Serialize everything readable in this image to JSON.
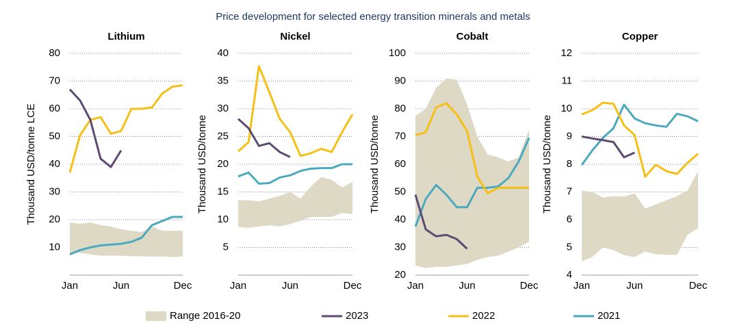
{
  "title": "Price development for selected energy transition minerals and metals",
  "legend": [
    {
      "name": "Range 2016-20",
      "color": "#ddd9c4"
    },
    {
      "name": "2023",
      "color": "#5c4a73"
    },
    {
      "name": "2022",
      "color": "#f5bf16"
    },
    {
      "name": "2021",
      "color": "#4aa8bf"
    }
  ],
  "chart_data": [
    {
      "type": "line",
      "title": "Lithium",
      "y_label": "Thousand USD/tonne LCE",
      "categories": [
        "Jan",
        null,
        null,
        null,
        null,
        "Jun",
        null,
        null,
        null,
        null,
        null,
        "Dec"
      ],
      "ylim": [
        0,
        80
      ],
      "yticks": [
        10,
        20,
        30,
        40,
        50,
        60,
        70,
        80
      ],
      "grid": true,
      "range": {
        "low": [
          8,
          8,
          7.5,
          7,
          7,
          7,
          6.8,
          6.8,
          6.7,
          6.7,
          6.5,
          6.7
        ],
        "high": [
          19,
          18.5,
          19,
          18,
          17.5,
          16.5,
          16,
          15.5,
          17.5,
          16,
          16,
          16
        ]
      },
      "series": [
        {
          "values": [
            67,
            63,
            56,
            42,
            39,
            45,
            null,
            null,
            null,
            null,
            null,
            null
          ]
        },
        {
          "values": [
            37,
            50.5,
            56,
            57,
            51,
            52,
            60,
            60,
            60.5,
            65.5,
            68,
            68.5
          ]
        },
        {
          "values": [
            7.5,
            9,
            10,
            10.7,
            11,
            11.3,
            12,
            13.5,
            18,
            19.5,
            21,
            21
          ]
        }
      ]
    },
    {
      "type": "line",
      "title": "Nickel",
      "y_label": "Thousand USD/tonne",
      "categories": [
        "Jan",
        null,
        null,
        null,
        null,
        "Jun",
        null,
        null,
        null,
        null,
        null,
        "Dec"
      ],
      "ylim": [
        0,
        40
      ],
      "yticks": [
        5,
        10,
        15,
        20,
        25,
        30,
        35,
        40
      ],
      "grid": true,
      "range": {
        "low": [
          8.7,
          8.5,
          8.8,
          9,
          8.8,
          9.2,
          9.8,
          10.5,
          10.5,
          10.5,
          11.2,
          11
        ],
        "high": [
          13.5,
          13.5,
          13.3,
          13.8,
          14.3,
          15,
          13.8,
          16,
          17.7,
          17.2,
          15.8,
          16.8
        ]
      },
      "series": [
        {
          "values": [
            28.2,
            26.5,
            23.3,
            23.8,
            22.2,
            21.3,
            null,
            null,
            null,
            null,
            null,
            null
          ]
        },
        {
          "values": [
            22.3,
            24,
            37.7,
            33,
            28.2,
            25.8,
            21.5,
            22,
            22.8,
            22.2,
            25.8,
            29
          ]
        },
        {
          "values": [
            17.8,
            18.5,
            16.5,
            16.6,
            17.6,
            18,
            18.8,
            19.2,
            19.3,
            19.3,
            20,
            20
          ]
        }
      ]
    },
    {
      "type": "line",
      "title": "Cobalt",
      "y_label": "Thousand USD/tonne",
      "categories": [
        "Jan",
        null,
        null,
        null,
        null,
        "Jun",
        null,
        null,
        null,
        null,
        null,
        "Dec"
      ],
      "ylim": [
        20,
        100
      ],
      "yticks": [
        20,
        30,
        40,
        50,
        60,
        70,
        80,
        90,
        100
      ],
      "grid": true,
      "range": {
        "low": [
          23.5,
          22.5,
          23,
          23,
          23.5,
          24,
          25.5,
          26.5,
          27,
          28.5,
          30,
          32
        ],
        "high": [
          77.5,
          80,
          87.5,
          91,
          90.5,
          81.5,
          70,
          63.5,
          62.5,
          61,
          62.5,
          72.5
        ]
      },
      "series": [
        {
          "values": [
            49,
            36.5,
            34,
            34.5,
            33,
            29.5,
            null,
            null,
            null,
            null,
            null,
            null
          ]
        },
        {
          "values": [
            70.5,
            71.5,
            80.5,
            82,
            78,
            72,
            55.5,
            49.5,
            51.5,
            51.5,
            51.5,
            51.5
          ]
        },
        {
          "values": [
            37.5,
            47.5,
            52.5,
            49,
            44.5,
            44.5,
            51.5,
            51.5,
            52,
            55,
            61,
            69.5
          ]
        }
      ]
    },
    {
      "type": "line",
      "title": "Copper",
      "y_label": "Thousand USD/tonne",
      "categories": [
        "Jan",
        null,
        null,
        null,
        null,
        "Jun",
        null,
        null,
        null,
        null,
        null,
        "Dec"
      ],
      "ylim": [
        4,
        12
      ],
      "yticks": [
        4,
        5,
        6,
        7,
        8,
        9,
        10,
        11,
        12
      ],
      "grid": true,
      "range": {
        "low": [
          4.5,
          4.65,
          5,
          4.9,
          4.72,
          4.65,
          4.85,
          4.75,
          4.73,
          4.73,
          5.45,
          5.7
        ],
        "high": [
          7.05,
          7,
          6.8,
          6.85,
          6.83,
          6.95,
          6.4,
          6.55,
          6.7,
          6.85,
          7.05,
          7.75
        ]
      },
      "series": [
        {
          "values": [
            9,
            8.93,
            8.87,
            8.8,
            8.25,
            8.42,
            null,
            null,
            null,
            null,
            null,
            null
          ]
        },
        {
          "values": [
            9.8,
            9.95,
            10.22,
            10.18,
            9.4,
            9.05,
            7.55,
            7.98,
            7.75,
            7.65,
            8.05,
            8.38
          ]
        },
        {
          "values": [
            7.97,
            8.5,
            8.95,
            9.3,
            10.15,
            9.65,
            9.48,
            9.4,
            9.35,
            9.82,
            9.73,
            9.55
          ]
        }
      ]
    }
  ]
}
